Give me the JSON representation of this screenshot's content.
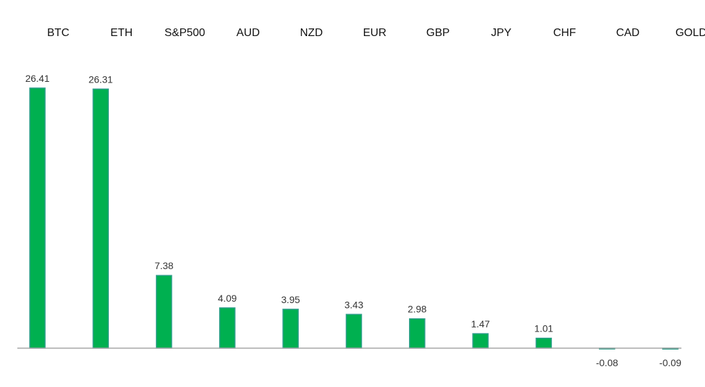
{
  "chart_data": {
    "type": "bar",
    "categories": [
      "BTC",
      "ETH",
      "S&P500",
      "AUD",
      "NZD",
      "EUR",
      "GBP",
      "JPY",
      "CHF",
      "CAD",
      "GOLD"
    ],
    "values": [
      26.41,
      26.31,
      7.38,
      4.09,
      3.95,
      3.43,
      2.98,
      1.47,
      1.01,
      -0.08,
      -0.09
    ],
    "value_labels": [
      "26.41",
      "26.31",
      "7.38",
      "4.09",
      "3.95",
      "3.43",
      "2.98",
      "1.47",
      "1.01",
      "-0.08",
      "-0.09"
    ],
    "title": "",
    "xlabel": "",
    "ylabel": "",
    "category_labels_position": "top",
    "grid": false,
    "legend": false,
    "colors": {
      "bar_fill": "#00b050",
      "bar_edge": "#2e9e8a",
      "axis": "#a6a6a6"
    }
  }
}
